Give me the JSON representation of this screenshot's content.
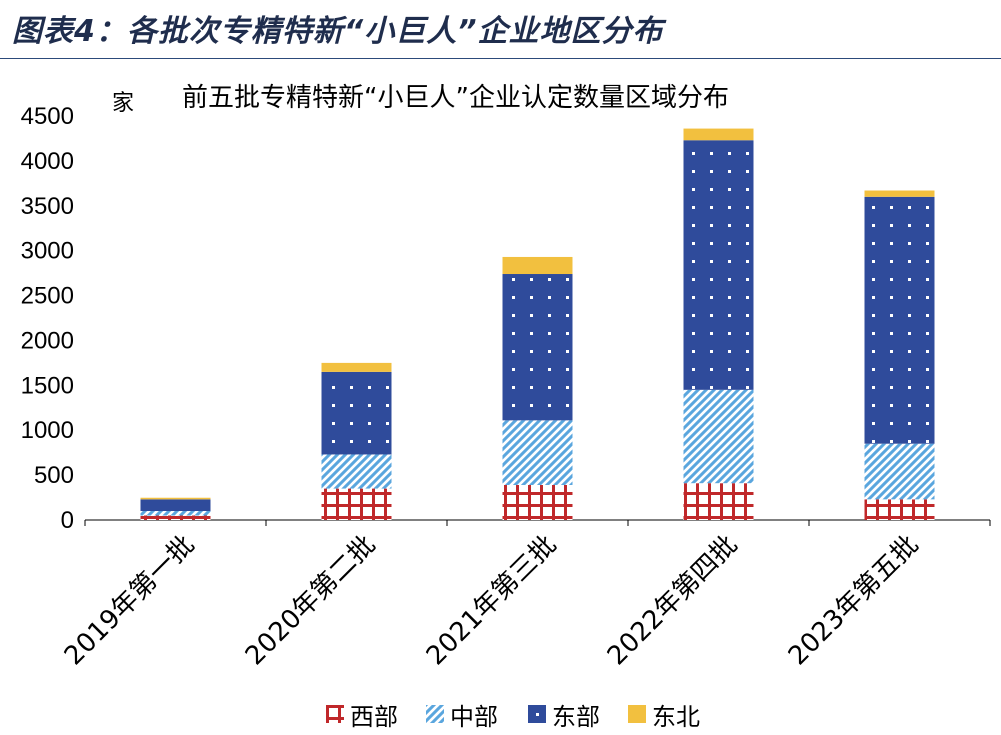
{
  "figure_title": "图表4：各批次专精特新“小巨人”企业地区分布",
  "chart_data": {
    "type": "bar",
    "stacked": true,
    "title": "前五批专精特新“小巨人”企业认定数量区域分布",
    "ylabel": "家",
    "xlabel": "",
    "ylim": [
      0,
      4500
    ],
    "yticks": [
      0,
      500,
      1000,
      1500,
      2000,
      2500,
      3000,
      3500,
      4000,
      4500
    ],
    "categories": [
      "2019年第一批",
      "2020年第二批",
      "2021年第三批",
      "2022年第四批",
      "2023年第五批"
    ],
    "series": [
      {
        "name": "西部",
        "values": [
          50,
          350,
          390,
          410,
          230
        ],
        "color": "#c0282a",
        "pattern": "grid"
      },
      {
        "name": "中部",
        "values": [
          50,
          380,
          720,
          1040,
          620
        ],
        "color": "#5aa6de",
        "pattern": "diagonal"
      },
      {
        "name": "东部",
        "values": [
          130,
          920,
          1630,
          2780,
          2750
        ],
        "color": "#2f4b9b",
        "pattern": "dots"
      },
      {
        "name": "东北",
        "values": [
          18,
          100,
          190,
          130,
          70
        ],
        "color": "#f2c03f",
        "pattern": "solid"
      }
    ],
    "legend_position": "bottom",
    "grid": false
  }
}
